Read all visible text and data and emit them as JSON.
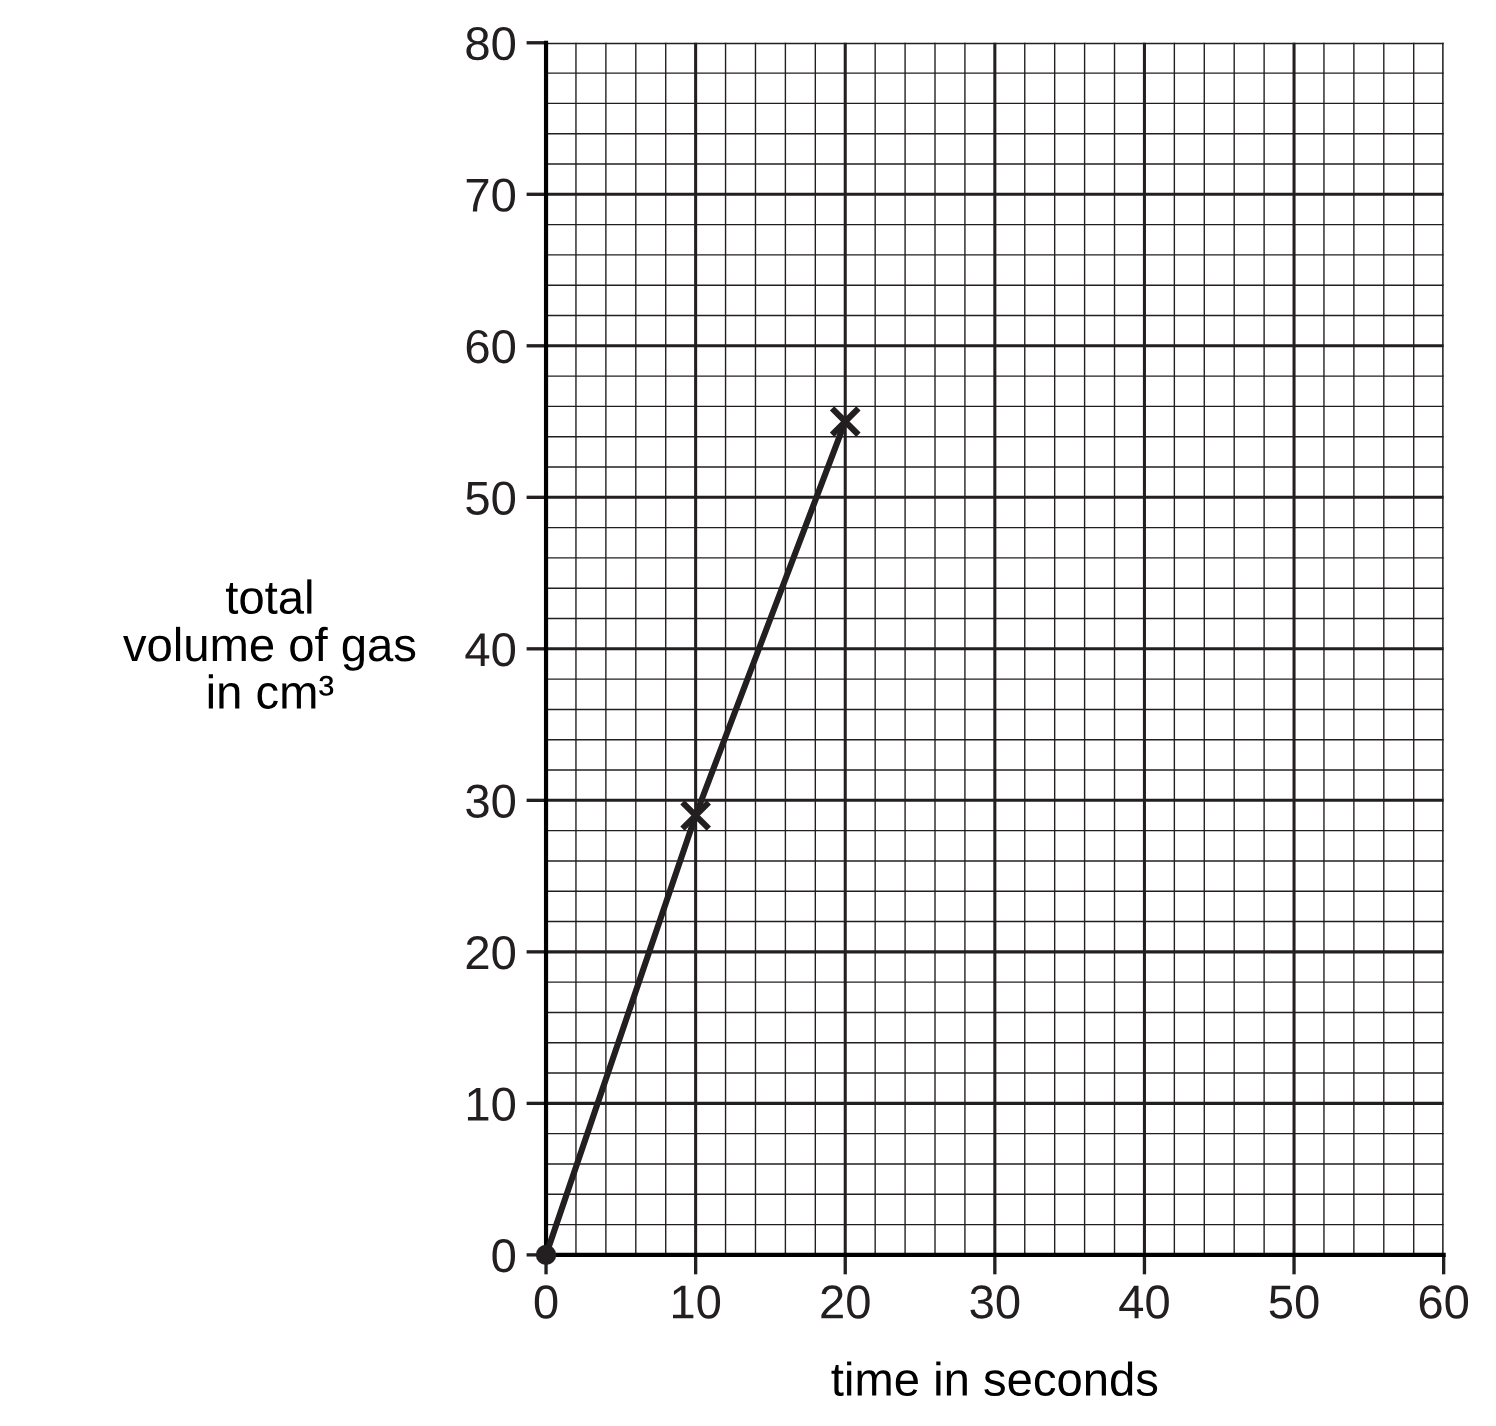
{
  "chart_data": {
    "type": "line",
    "xlabel": "time in seconds",
    "ylabel": "total\nvolume of gas\nin cm³",
    "xlim": [
      0,
      60
    ],
    "ylim": [
      0,
      80
    ],
    "xticks": [
      0,
      10,
      20,
      30,
      40,
      50,
      60
    ],
    "yticks": [
      0,
      10,
      20,
      30,
      40,
      50,
      60,
      70,
      80
    ],
    "grid": true,
    "series": [
      {
        "color": "#231f20",
        "x": [
          0,
          10,
          20
        ],
        "values": [
          0,
          29,
          55
        ],
        "marker": "none"
      },
      {
        "type": "scatter",
        "color": "#231f20",
        "x": [
          10,
          20
        ],
        "values": [
          29,
          55
        ],
        "marker": "cross"
      },
      {
        "type": "scatter",
        "color": "#231f20",
        "x": [
          0
        ],
        "values": [
          0
        ],
        "marker": "circle"
      }
    ]
  }
}
